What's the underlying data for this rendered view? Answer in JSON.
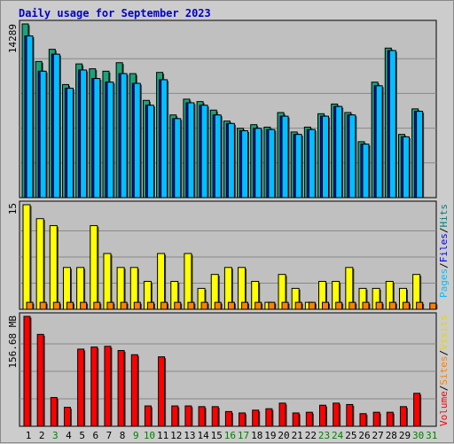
{
  "title": "Daily usage for September 2023",
  "colors": {
    "hits": "#008080",
    "hits_fill": "#1aa37a",
    "files": "#0000ff",
    "pages": "#00c0ff",
    "visits": "#ffff00",
    "sites": "#ff8000",
    "volume": "#ff0000",
    "weekend_label": "#008000",
    "weekday_label": "#000000",
    "panel_bg": "#c0c0c0",
    "page_bg": "#cccccc"
  },
  "chart_data": [
    {
      "type": "bar",
      "panel": "hits-files-pages",
      "ymax_label": "14289",
      "ymax": 14289,
      "legend": [
        {
          "name": "Hits",
          "color": "#008080"
        },
        {
          "name": "Files",
          "color": "#0000ff"
        },
        {
          "name": "Pages",
          "color": "#00c0ff"
        }
      ],
      "categories": [
        "1",
        "2",
        "3",
        "4",
        "5",
        "6",
        "7",
        "8",
        "9",
        "10",
        "11",
        "12",
        "13",
        "14",
        "15",
        "16",
        "17",
        "18",
        "19",
        "20",
        "21",
        "22",
        "23",
        "24",
        "25",
        "26",
        "27",
        "28",
        "29",
        "30",
        "31"
      ],
      "series": [
        {
          "name": "Hits",
          "values": [
            14289,
            11200,
            12200,
            9300,
            11000,
            10600,
            10400,
            11100,
            10200,
            8000,
            10300,
            6800,
            8100,
            7900,
            7200,
            6300,
            5700,
            6000,
            5800,
            7000,
            5400,
            5800,
            6900,
            7700,
            7000,
            4600,
            9500,
            12300,
            5200,
            7300,
            0
          ]
        },
        {
          "name": "Files",
          "values": [
            13300,
            10400,
            11800,
            9000,
            10500,
            9800,
            9500,
            10200,
            9400,
            7600,
            9700,
            6500,
            7800,
            7600,
            6800,
            6100,
            5500,
            5700,
            5600,
            6700,
            5200,
            5600,
            6700,
            7500,
            6800,
            4400,
            9200,
            12100,
            5000,
            7100,
            0
          ]
        },
        {
          "name": "Pages",
          "values": [
            13300,
            10400,
            11800,
            9000,
            10500,
            9800,
            9500,
            10200,
            9400,
            7600,
            9700,
            6500,
            7800,
            7600,
            6800,
            6100,
            5500,
            5700,
            5600,
            6700,
            5200,
            5600,
            6700,
            7500,
            6800,
            4400,
            9200,
            12100,
            5000,
            7100,
            0
          ]
        }
      ]
    },
    {
      "type": "bar",
      "panel": "visits-sites",
      "ymax_label": "15",
      "ymax": 15,
      "legend": [
        {
          "name": "Visits",
          "color": "#ffff00"
        },
        {
          "name": "Sites",
          "color": "#ff8000"
        }
      ],
      "categories": [
        "1",
        "2",
        "3",
        "4",
        "5",
        "6",
        "7",
        "8",
        "9",
        "10",
        "11",
        "12",
        "13",
        "14",
        "15",
        "16",
        "17",
        "18",
        "19",
        "20",
        "21",
        "22",
        "23",
        "24",
        "25",
        "26",
        "27",
        "28",
        "29",
        "30",
        "31"
      ],
      "series": [
        {
          "name": "Visits",
          "values": [
            15,
            13,
            12,
            6,
            6,
            12,
            8,
            6,
            6,
            4,
            8,
            4,
            8,
            3,
            5,
            6,
            6,
            4,
            1,
            5,
            3,
            1,
            4,
            4,
            6,
            3,
            3,
            4,
            3,
            5,
            0
          ]
        },
        {
          "name": "Sites",
          "values": [
            1,
            1,
            1,
            1,
            1,
            1,
            1,
            1,
            1,
            1,
            1,
            1,
            1,
            1,
            1,
            1,
            1,
            1,
            1,
            1,
            1,
            1,
            1,
            1,
            1,
            1,
            1,
            1,
            1,
            1,
            0
          ]
        }
      ]
    },
    {
      "type": "bar",
      "panel": "volume",
      "ymax_label": "156.68 MB",
      "ymax": 156.68,
      "legend": [
        {
          "name": "Volume",
          "color": "#ff0000"
        }
      ],
      "categories": [
        "1",
        "2",
        "3",
        "4",
        "5",
        "6",
        "7",
        "8",
        "9",
        "10",
        "11",
        "12",
        "13",
        "14",
        "15",
        "16",
        "17",
        "18",
        "19",
        "20",
        "21",
        "22",
        "23",
        "24",
        "25",
        "26",
        "27",
        "28",
        "29",
        "30",
        "31"
      ],
      "series": [
        {
          "name": "Volume",
          "values": [
            156.68,
            131,
            41,
            27,
            110,
            113,
            114,
            108,
            102,
            29,
            99,
            29,
            29,
            28,
            28,
            21,
            19,
            23,
            25,
            33,
            19,
            20,
            30,
            33,
            31,
            18,
            20,
            20,
            28,
            47,
            0
          ]
        }
      ]
    }
  ],
  "weekend_days": [
    "9",
    "10",
    "16",
    "17",
    "23",
    "24",
    "30",
    "31"
  ],
  "weekend_colored_days": [
    "3",
    "9",
    "10",
    "16",
    "17",
    "23",
    "24",
    "30",
    "31"
  ]
}
